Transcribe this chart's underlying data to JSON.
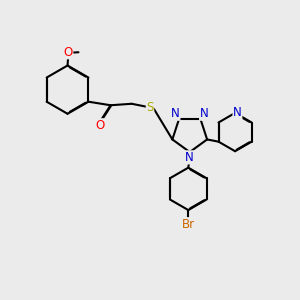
{
  "bg_color": "#ebebeb",
  "bond_color": "#000000",
  "bond_width": 1.5,
  "atom_colors": {
    "O": "#ff0000",
    "N": "#0000cc",
    "S": "#aaaa00",
    "Br": "#cc6600"
  },
  "font_size": 8.5
}
